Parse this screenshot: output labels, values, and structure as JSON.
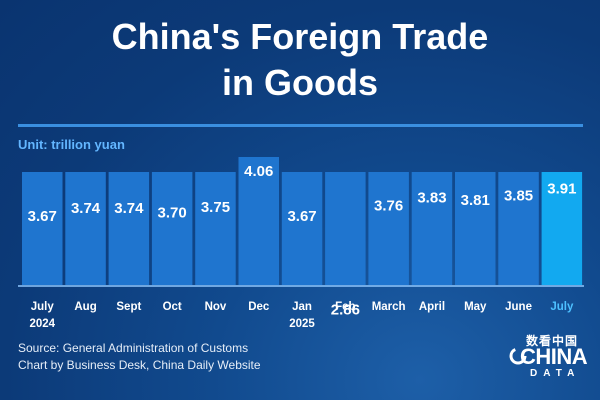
{
  "header": {
    "title_line1": "China's Foreign Trade",
    "title_line2": "in Goods",
    "unit": "Unit: trillion yuan"
  },
  "footer": {
    "source": "Source: General Administration of Customs",
    "credit": "Chart by Business Desk, China Daily Website"
  },
  "logo": {
    "chinese": "数看中国",
    "main": "CHINA",
    "sub": "DATA"
  },
  "colors": {
    "bar": "#1f75cf",
    "highlight_bar": "#12a9f0",
    "highlight_label": "#4dc0ff",
    "unit_text": "#63b6ff",
    "background": "#0c3a78"
  },
  "chart_data": {
    "type": "bar",
    "categories": [
      "July",
      "Aug",
      "Sept",
      "Oct",
      "Nov",
      "Dec",
      "Jan",
      "Feb",
      "March",
      "April",
      "May",
      "June",
      "July"
    ],
    "year_labels": [
      "2024",
      "",
      "",
      "",
      "",
      "",
      "2025",
      "",
      "",
      "",
      "",
      "",
      ""
    ],
    "values": [
      3.67,
      3.74,
      3.74,
      3.7,
      3.75,
      4.06,
      3.67,
      2.86,
      3.76,
      3.83,
      3.81,
      3.85,
      3.91
    ],
    "value_labels": [
      "3.67",
      "3.74",
      "3.74",
      "3.70",
      "3.75",
      "4.06",
      "3.67",
      "2.86",
      "3.76",
      "3.83",
      "3.81",
      "3.85",
      "3.91"
    ],
    "highlight_index": 12,
    "title": "",
    "xlabel": "",
    "ylabel": "",
    "unit": "trillion yuan",
    "grid": false,
    "legend": "none"
  }
}
